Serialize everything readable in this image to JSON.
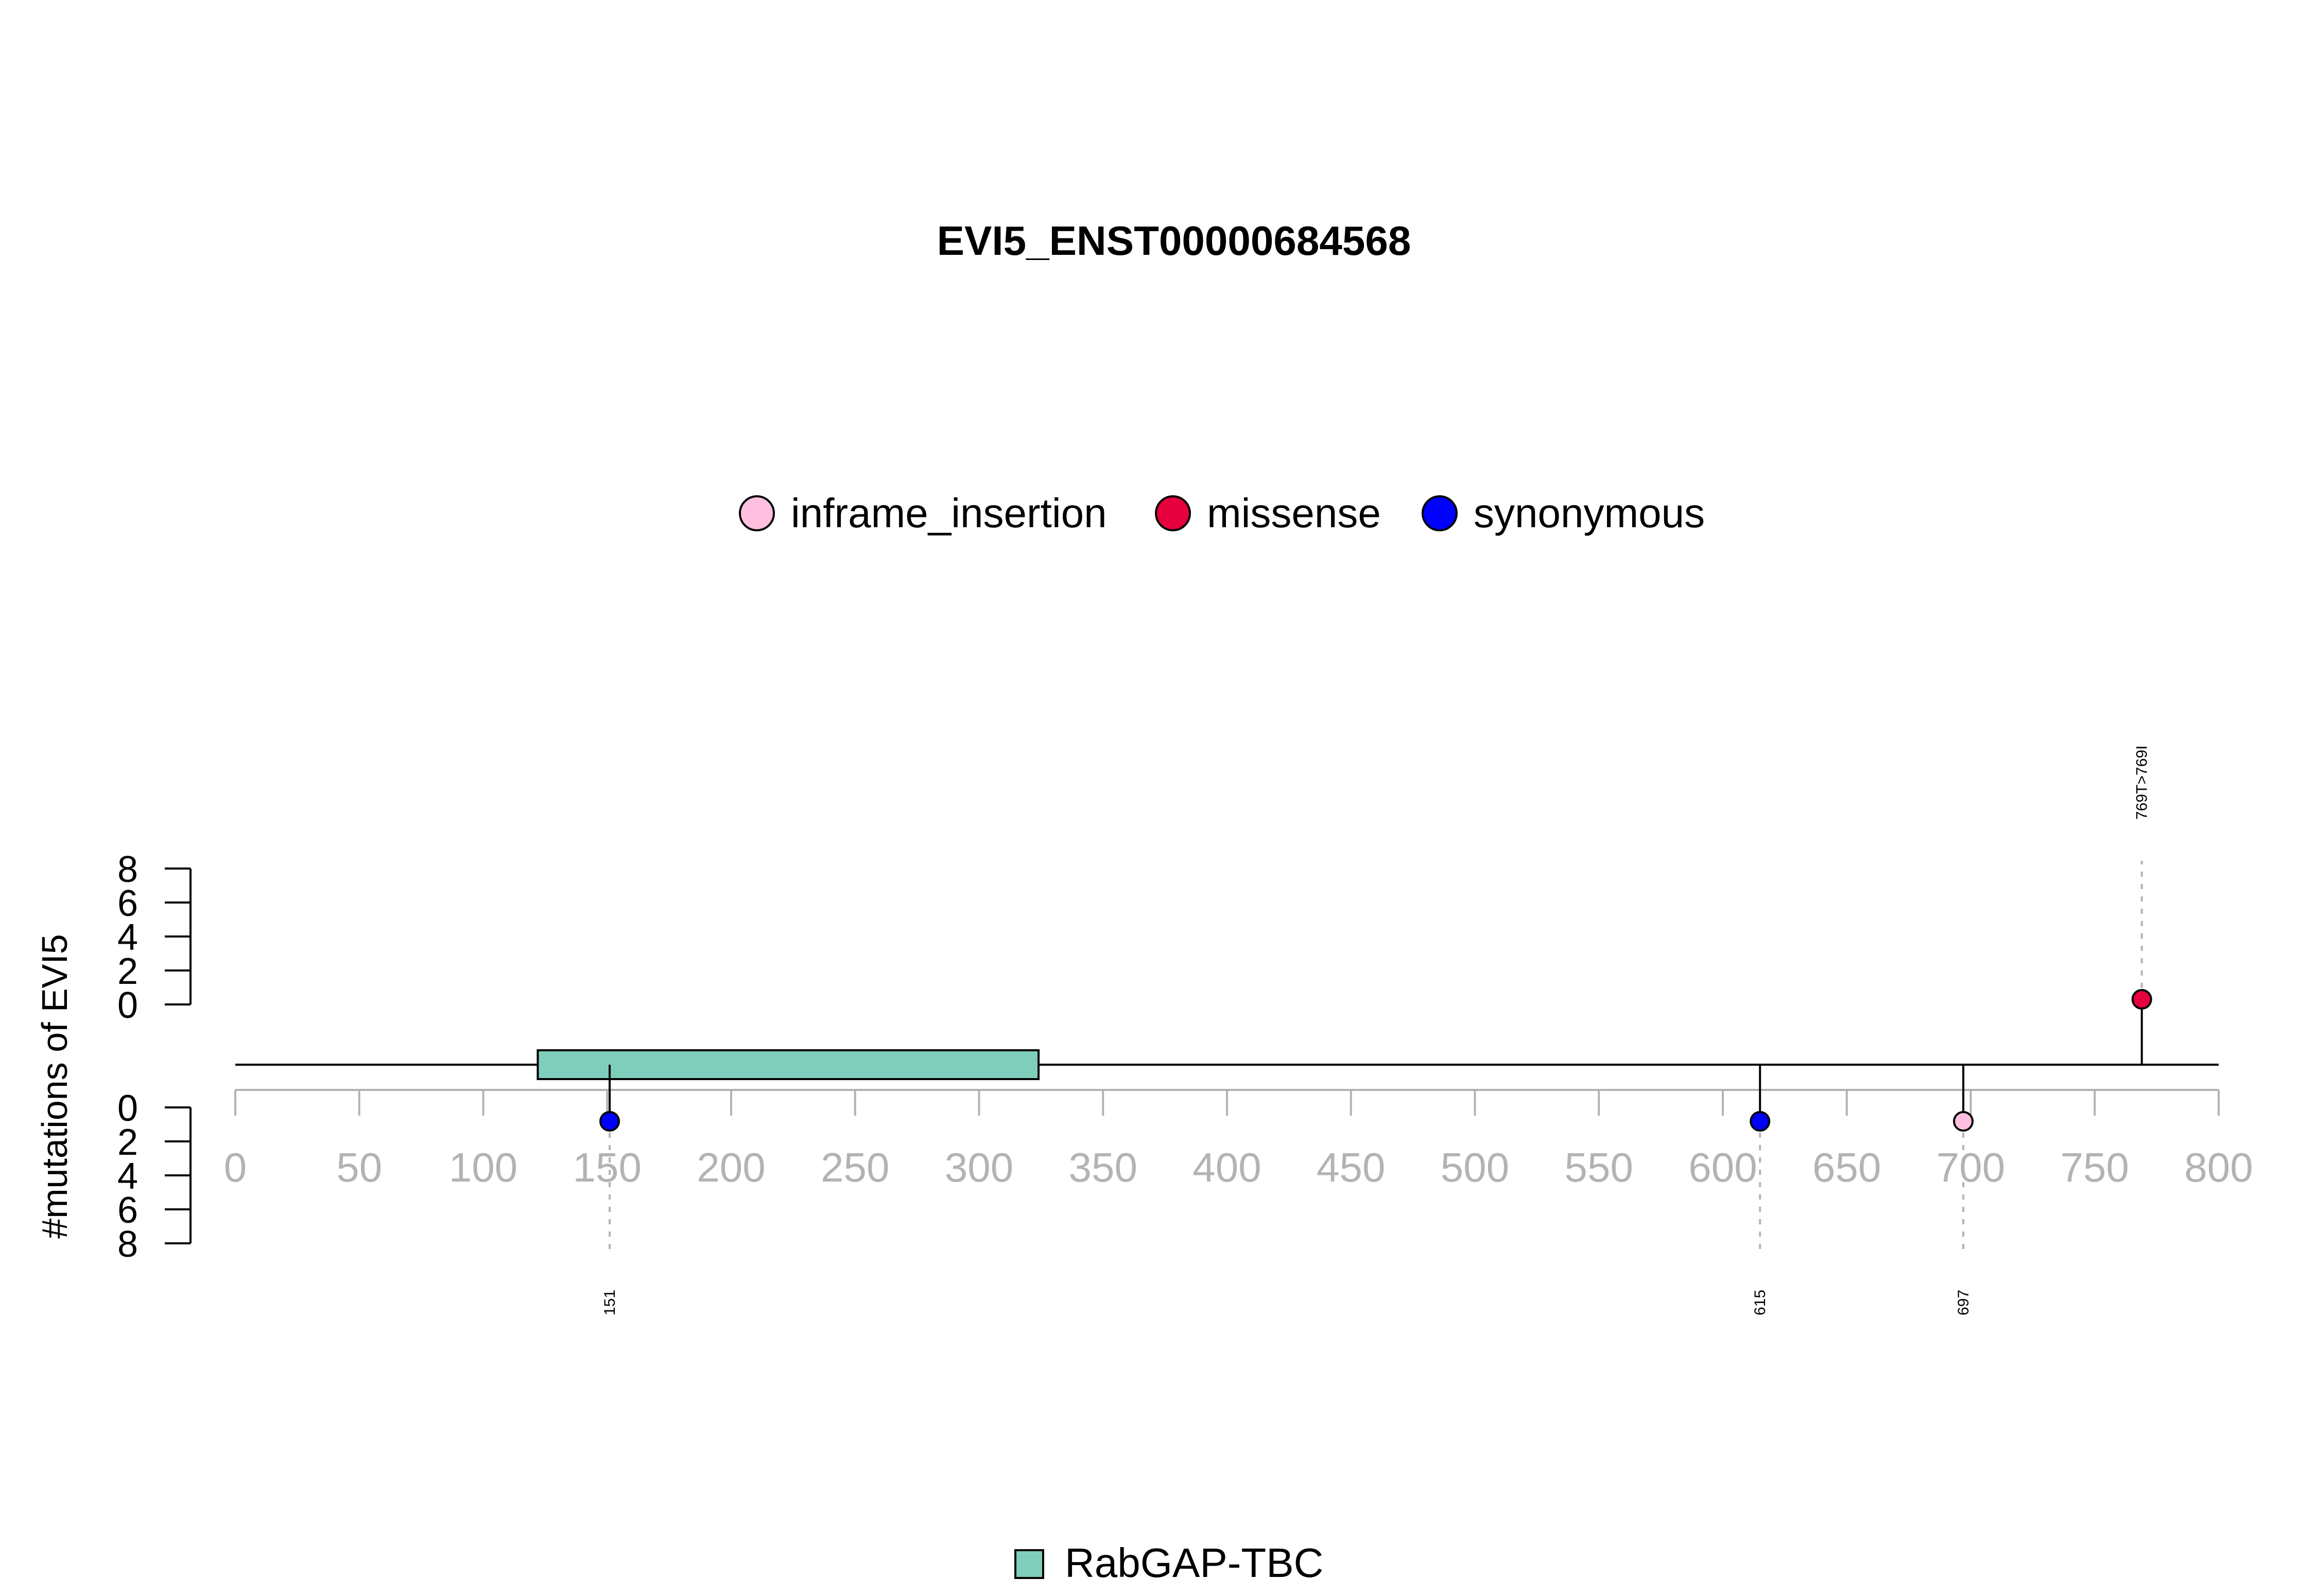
{
  "chart_data": {
    "type": "lollipop",
    "title": "EVI5_ENST00000684568",
    "ylabel": "#mutations of EVI5",
    "xlim": [
      0,
      800
    ],
    "x_ticks": [
      0,
      50,
      100,
      150,
      200,
      250,
      300,
      350,
      400,
      450,
      500,
      550,
      600,
      650,
      700,
      750,
      800
    ],
    "upper_y_ticks": [
      0,
      2,
      4,
      6,
      8
    ],
    "lower_y_ticks": [
      0,
      2,
      4,
      6,
      8
    ],
    "legend": {
      "placement": "top-center",
      "entries": [
        {
          "name": "inframe_insertion",
          "color": "#ffc0e0"
        },
        {
          "name": "missense",
          "color": "#e6003d"
        },
        {
          "name": "synonymous",
          "color": "#0000ff"
        }
      ]
    },
    "domains": [
      {
        "name": "RabGAP-TBC",
        "start": 122,
        "end": 324,
        "color": "#7fcdbb"
      }
    ],
    "mutations": [
      {
        "position": 151,
        "label": "151",
        "type": "synonymous",
        "count": 1,
        "side": "lower",
        "color": "#0000ff"
      },
      {
        "position": 615,
        "label": "615",
        "type": "synonymous",
        "count": 1,
        "side": "lower",
        "color": "#0000ff"
      },
      {
        "position": 697,
        "label": "697",
        "type": "inframe_insertion",
        "count": 1,
        "side": "lower",
        "color": "#ffc0e0"
      },
      {
        "position": 769,
        "label": "769T>769I",
        "type": "missense",
        "count": 1,
        "side": "upper",
        "color": "#e6003d"
      }
    ],
    "domain_legend": {
      "name": "RabGAP-TBC",
      "color": "#7fcdbb",
      "placement": "bottom-center"
    }
  }
}
